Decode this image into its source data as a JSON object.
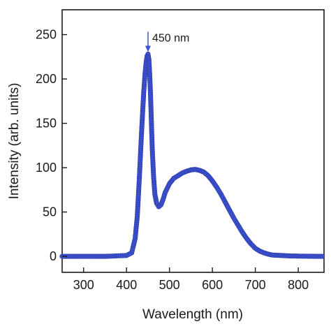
{
  "chart_data": {
    "type": "scatter",
    "xlabel": "Wavelength (nm)",
    "ylabel": "Intensity (arb. units)",
    "xlim": [
      250,
      860
    ],
    "ylim": [
      -18,
      278
    ],
    "x_ticks": [
      300,
      400,
      500,
      600,
      700,
      800
    ],
    "y_ticks": [
      0,
      50,
      100,
      150,
      200,
      250
    ],
    "grid": false,
    "marker_color": "#3e52cc",
    "annotation": {
      "text": "450 nm",
      "x": 450,
      "y": 228
    },
    "series": [
      {
        "x": [
          250,
          300,
          350,
          400,
          412,
          420,
          425,
          430,
          435,
          440,
          443,
          446,
          448,
          450,
          452,
          454,
          456,
          458,
          460,
          463,
          466,
          470,
          475,
          480,
          485,
          490,
          500,
          510,
          520,
          530,
          540,
          550,
          560,
          570,
          580,
          590,
          600,
          610,
          620,
          630,
          640,
          650,
          660,
          670,
          680,
          690,
          700,
          710,
          720,
          730,
          740,
          760,
          780,
          800,
          830,
          860
        ],
        "y": [
          0,
          0,
          0,
          1,
          4,
          20,
          45,
          90,
          140,
          185,
          205,
          220,
          226,
          228,
          222,
          205,
          180,
          150,
          120,
          90,
          70,
          60,
          56,
          58,
          64,
          72,
          82,
          88,
          91,
          94,
          96,
          97.5,
          98,
          97,
          95,
          91,
          85,
          78,
          70,
          61,
          52,
          43,
          35,
          27,
          20,
          14,
          9,
          6,
          4,
          2.5,
          1.5,
          1,
          0.5,
          0.3,
          0.1,
          0
        ]
      }
    ]
  }
}
